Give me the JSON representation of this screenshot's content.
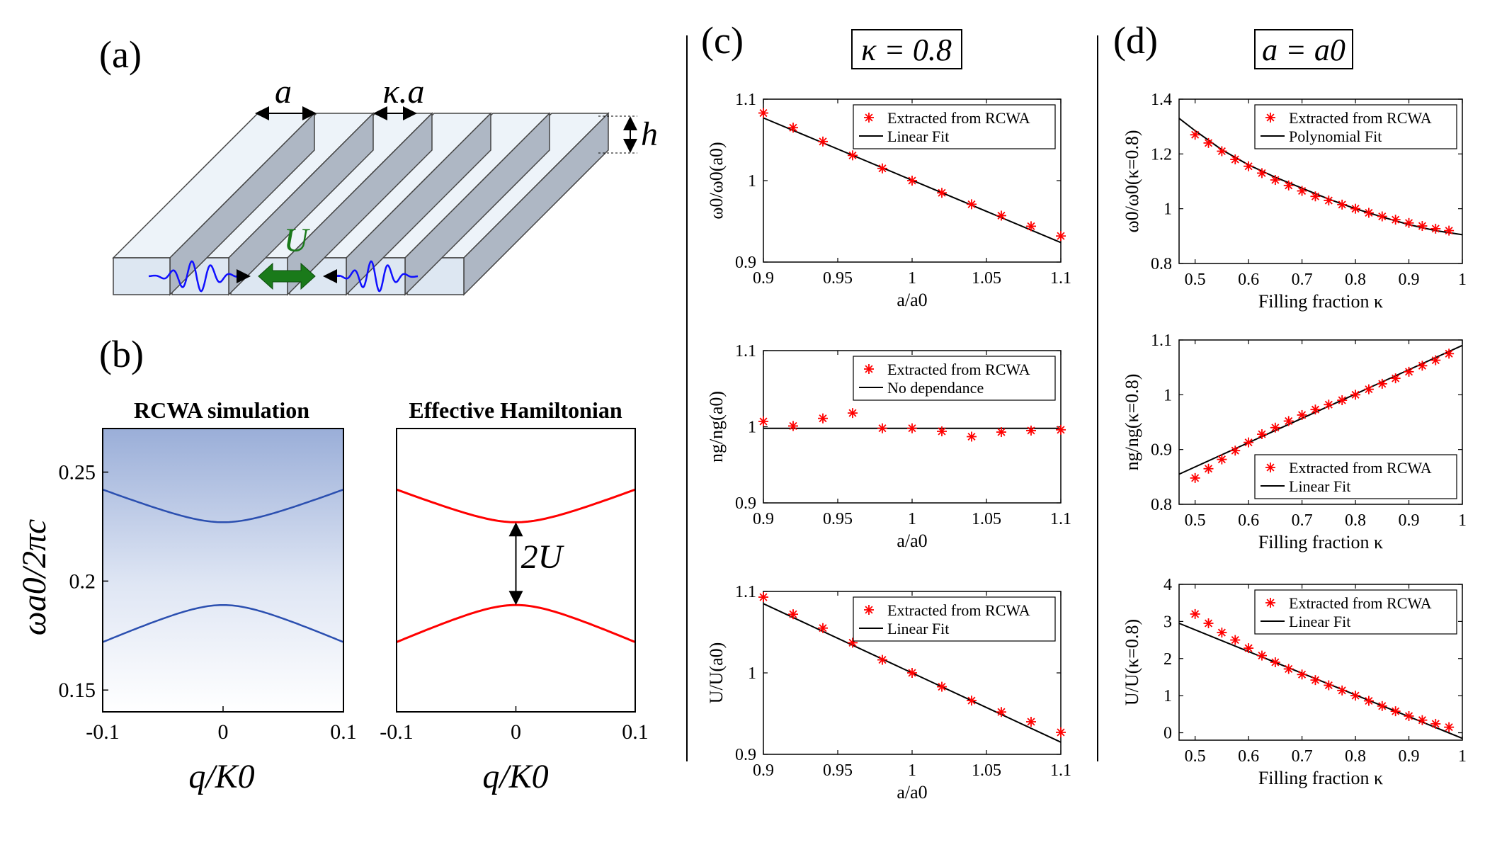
{
  "panels": {
    "a": {
      "label": "(a)",
      "period_symbol": "a",
      "width_symbol": "κ.a",
      "height_symbol": "h",
      "coupling_symbol": "U"
    },
    "b": {
      "label": "(b)",
      "left_title": "RCWA simulation",
      "right_title": "Effective Hamiltonian",
      "ylabel": "ωa0/2πc",
      "xlabel": "q/K0",
      "gap_label": "2U",
      "xticks": [
        "-0.1",
        "0",
        "0.1"
      ],
      "yticks": [
        "0.15",
        "0.2",
        "0.25"
      ]
    },
    "c": {
      "label": "(c)",
      "header": "κ = 0.8"
    },
    "d": {
      "label": "(d)",
      "header": "a = a0"
    }
  },
  "colors": {
    "markers": "#ff0000",
    "fit": "#000000",
    "band": "#2b4fb0",
    "hamiltonian": "#ff0000",
    "coupling_arrow": "#1a7a1a",
    "wave": "#1010ff",
    "bar_face": "#dde7f2"
  },
  "chart_data": [
    {
      "id": "b-left",
      "type": "heatmap",
      "title": "RCWA simulation",
      "xlabel": "q/K0",
      "ylabel": "ωa0/2πc",
      "xlim": [
        -0.1,
        0.1
      ],
      "ylim": [
        0.14,
        0.27
      ],
      "xticks": [
        -0.1,
        0,
        0.1
      ],
      "yticks": [
        0.15,
        0.2,
        0.25
      ],
      "series": [
        {
          "x": [
            -0.1,
            -0.05,
            0,
            0.05,
            0.1
          ],
          "y": [
            0.242,
            0.234,
            0.227,
            0.234,
            0.242
          ]
        },
        {
          "x": [
            -0.1,
            -0.05,
            0,
            0.05,
            0.1
          ],
          "y": [
            0.172,
            0.182,
            0.189,
            0.182,
            0.172
          ]
        }
      ]
    },
    {
      "id": "b-right",
      "type": "line",
      "title": "Effective Hamiltonian",
      "xlabel": "q/K0",
      "xlim": [
        -0.1,
        0.1
      ],
      "ylim": [
        0.14,
        0.27
      ],
      "xticks": [
        -0.1,
        0,
        0.1
      ],
      "series": [
        {
          "x": [
            -0.1,
            -0.05,
            0,
            0.05,
            0.1
          ],
          "y": [
            0.242,
            0.234,
            0.227,
            0.234,
            0.242
          ]
        },
        {
          "x": [
            -0.1,
            -0.05,
            0,
            0.05,
            0.1
          ],
          "y": [
            0.172,
            0.182,
            0.189,
            0.182,
            0.172
          ]
        }
      ]
    },
    {
      "id": "c1",
      "type": "scatter",
      "xlabel": "a/a0",
      "ylabel": "ω0/ω0(a0)",
      "xlim": [
        0.9,
        1.1
      ],
      "ylim": [
        0.9,
        1.1
      ],
      "xticks": [
        "0.9",
        "0.95",
        "1",
        "1.05",
        "1.1"
      ],
      "yticks": [
        "0.9",
        "1",
        "1.1"
      ],
      "legend_markers": "Extracted from RCWA",
      "legend_fit": "Linear Fit",
      "legend": "top-right",
      "x": [
        0.9,
        0.92,
        0.94,
        0.96,
        0.98,
        1.0,
        1.02,
        1.04,
        1.06,
        1.08,
        1.1
      ],
      "y": [
        1.083,
        1.065,
        1.048,
        1.031,
        1.015,
        1.0,
        0.985,
        0.971,
        0.957,
        0.944,
        0.932
      ],
      "fit": [
        [
          0.9,
          1.077
        ],
        [
          1.1,
          0.924
        ]
      ]
    },
    {
      "id": "c2",
      "type": "scatter",
      "xlabel": "a/a0",
      "ylabel": "ng/ng(a0)",
      "xlim": [
        0.9,
        1.1
      ],
      "ylim": [
        0.9,
        1.1
      ],
      "xticks": [
        "0.9",
        "0.95",
        "1",
        "1.05",
        "1.1"
      ],
      "yticks": [
        "0.9",
        "1",
        "1.1"
      ],
      "legend_markers": "Extracted from RCWA",
      "legend_fit": "No dependance",
      "legend": "top-right",
      "x": [
        0.9,
        0.92,
        0.94,
        0.96,
        0.98,
        1.0,
        1.02,
        1.04,
        1.06,
        1.08,
        1.1
      ],
      "y": [
        1.007,
        1.001,
        1.011,
        1.018,
        0.998,
        0.998,
        0.994,
        0.987,
        0.993,
        0.995,
        0.996
      ],
      "fit": [
        [
          0.9,
          0.998
        ],
        [
          1.1,
          0.998
        ]
      ]
    },
    {
      "id": "c3",
      "type": "scatter",
      "xlabel": "a/a0",
      "ylabel": "U/U(a0)",
      "xlim": [
        0.9,
        1.1
      ],
      "ylim": [
        0.9,
        1.1
      ],
      "xticks": [
        "0.9",
        "0.95",
        "1",
        "1.05",
        "1.1"
      ],
      "yticks": [
        "0.9",
        "1",
        "1.1"
      ],
      "legend_markers": "Extracted from RCWA",
      "legend_fit": "Linear Fit",
      "legend": "top-right",
      "x": [
        0.9,
        0.92,
        0.94,
        0.96,
        0.98,
        1.0,
        1.02,
        1.04,
        1.06,
        1.08,
        1.1
      ],
      "y": [
        1.093,
        1.072,
        1.055,
        1.037,
        1.016,
        1.0,
        0.983,
        0.966,
        0.952,
        0.94,
        0.927
      ],
      "fit": [
        [
          0.9,
          1.085
        ],
        [
          1.1,
          0.915
        ]
      ]
    },
    {
      "id": "d1",
      "type": "scatter",
      "xlabel": "Filling fraction κ",
      "ylabel": "ω0/ω0(κ=0.8)",
      "xlim": [
        0.47,
        1.0
      ],
      "ylim": [
        0.8,
        1.4
      ],
      "xticks": [
        "0.5",
        "0.6",
        "0.7",
        "0.8",
        "0.9",
        "1"
      ],
      "yticks": [
        "0.8",
        "1",
        "1.2",
        "1.4"
      ],
      "legend_markers": "Extracted from RCWA",
      "legend_fit": "Polynomial Fit",
      "legend": "top-right",
      "x": [
        0.5,
        0.525,
        0.55,
        0.575,
        0.6,
        0.625,
        0.65,
        0.675,
        0.7,
        0.725,
        0.75,
        0.775,
        0.8,
        0.825,
        0.85,
        0.875,
        0.9,
        0.925,
        0.95,
        0.975
      ],
      "y": [
        1.27,
        1.24,
        1.21,
        1.18,
        1.155,
        1.13,
        1.105,
        1.085,
        1.065,
        1.045,
        1.03,
        1.015,
        1.0,
        0.985,
        0.972,
        0.96,
        0.948,
        0.937,
        0.927,
        0.92
      ],
      "fit": [
        [
          0.47,
          1.33
        ],
        [
          0.5,
          1.285
        ],
        [
          0.55,
          1.215
        ],
        [
          0.6,
          1.16
        ],
        [
          0.65,
          1.115
        ],
        [
          0.7,
          1.075
        ],
        [
          0.75,
          1.035
        ],
        [
          0.8,
          1.0
        ],
        [
          0.85,
          0.97
        ],
        [
          0.9,
          0.942
        ],
        [
          0.95,
          0.92
        ],
        [
          1.0,
          0.905
        ]
      ]
    },
    {
      "id": "d2",
      "type": "scatter",
      "xlabel": "Filling fraction κ",
      "ylabel": "ng/ng(κ=0.8)",
      "xlim": [
        0.47,
        1.0
      ],
      "ylim": [
        0.8,
        1.1
      ],
      "xticks": [
        "0.5",
        "0.6",
        "0.7",
        "0.8",
        "0.9",
        "1"
      ],
      "yticks": [
        "0.8",
        "0.9",
        "1",
        "1.1"
      ],
      "legend_markers": "Extracted from RCWA",
      "legend_fit": "Linear Fit",
      "legend": "bottom-right",
      "x": [
        0.5,
        0.525,
        0.55,
        0.575,
        0.6,
        0.625,
        0.65,
        0.675,
        0.7,
        0.725,
        0.75,
        0.775,
        0.8,
        0.825,
        0.85,
        0.875,
        0.9,
        0.925,
        0.95,
        0.975
      ],
      "y": [
        0.848,
        0.865,
        0.882,
        0.898,
        0.913,
        0.928,
        0.94,
        0.952,
        0.963,
        0.973,
        0.982,
        0.99,
        1.0,
        1.01,
        1.02,
        1.03,
        1.042,
        1.053,
        1.063,
        1.075
      ],
      "fit": [
        [
          0.47,
          0.855
        ],
        [
          1.0,
          1.09
        ]
      ]
    },
    {
      "id": "d3",
      "type": "scatter",
      "xlabel": "Filling fraction κ",
      "ylabel": "U/U(κ=0.8)",
      "xlim": [
        0.47,
        1.0
      ],
      "ylim": [
        -0.2,
        4
      ],
      "xticks": [
        "0.5",
        "0.6",
        "0.7",
        "0.8",
        "0.9",
        "1"
      ],
      "yticks": [
        "0",
        "1",
        "2",
        "3",
        "4"
      ],
      "legend_markers": "Extracted from RCWA",
      "legend_fit": "Linear Fit",
      "legend": "top-right",
      "x": [
        0.5,
        0.525,
        0.55,
        0.575,
        0.6,
        0.625,
        0.65,
        0.675,
        0.7,
        0.725,
        0.75,
        0.775,
        0.8,
        0.825,
        0.85,
        0.875,
        0.9,
        0.925,
        0.95,
        0.975
      ],
      "y": [
        3.2,
        2.95,
        2.7,
        2.5,
        2.28,
        2.08,
        1.9,
        1.72,
        1.57,
        1.42,
        1.28,
        1.14,
        1.0,
        0.86,
        0.72,
        0.58,
        0.45,
        0.34,
        0.24,
        0.15
      ],
      "fit": [
        [
          0.47,
          2.95
        ],
        [
          1.0,
          -0.15
        ]
      ]
    }
  ]
}
